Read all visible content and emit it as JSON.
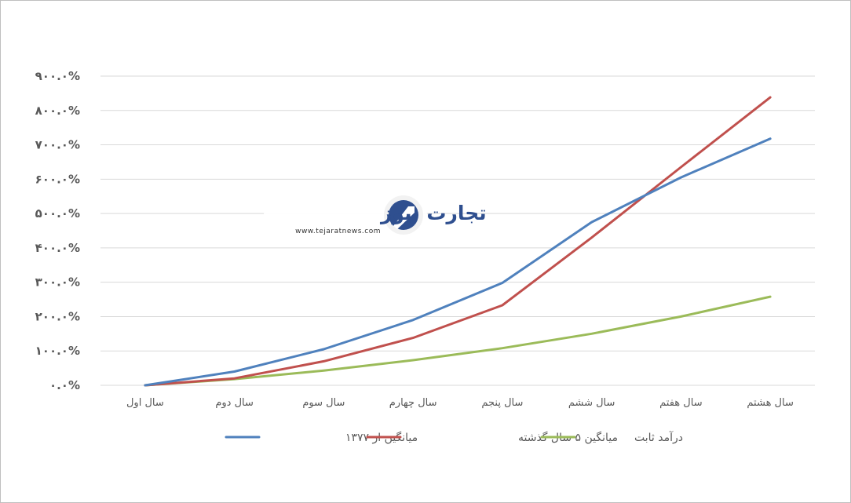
{
  "chart_data": {
    "type": "line",
    "categories": [
      "سال اول",
      "سال دوم",
      "سال سوم",
      "سال چهارم",
      "سال پنجم",
      "سال ششم",
      "سال هفتم",
      "سال هشتم"
    ],
    "y_tick_labels": [
      "۰.۰%",
      "۱۰۰.۰%",
      "۲۰۰.۰%",
      "۳۰۰.۰%",
      "۴۰۰.۰%",
      "۵۰۰.۰%",
      "۶۰۰.۰%",
      "۷۰۰.۰%",
      "۸۰۰.۰%",
      "۹۰۰.۰%"
    ],
    "ylim": [
      0,
      900
    ],
    "grid": true,
    "legend_position": "bottom",
    "series": [
      {
        "name": "میانگین از ۱۳۷۷",
        "color": "#4f81bd",
        "values": [
          0,
          40,
          105,
          190,
          298,
          475,
          605,
          718
        ]
      },
      {
        "name": "میانگین ۵ سال گذشته",
        "color": "#c0504d",
        "values": [
          0,
          20,
          70,
          138,
          233,
          430,
          635,
          838
        ]
      },
      {
        "name": "درآمد ثابت",
        "color": "#9bbb59",
        "values": [
          0,
          18,
          43,
          73,
          108,
          150,
          200,
          258
        ]
      }
    ]
  },
  "watermark": {
    "brand": "تجارت نیوز",
    "url": "www.tejaratnews.com",
    "icon": "tejaratnews-logo-icon",
    "brand_color": "#2f4f8f",
    "accent_color": "#e31e24"
  }
}
